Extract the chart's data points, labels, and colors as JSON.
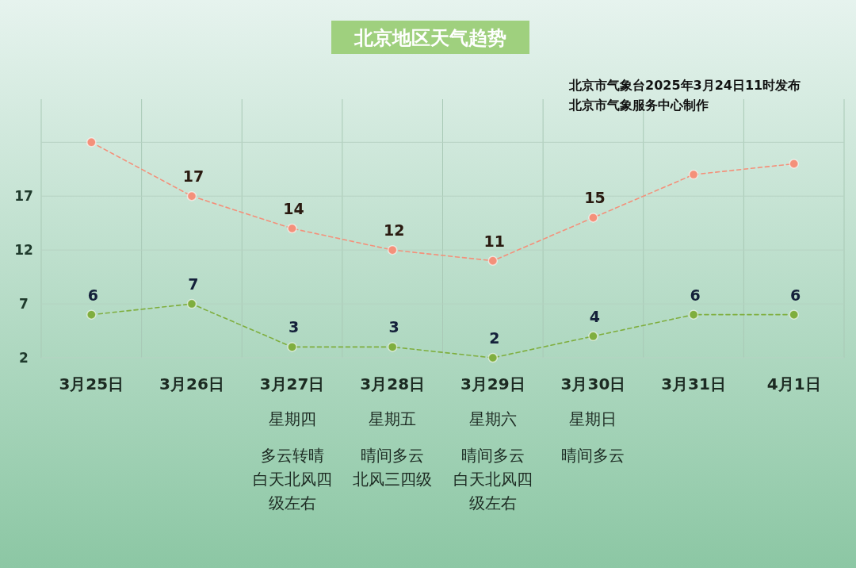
{
  "chart_data": {
    "type": "line",
    "title": "北京地区天气趋势",
    "categories": [
      "3月25日",
      "3月26日",
      "3月27日星期四多云转晴白天北风四级左右",
      "3月28日星期五晴间多云北风三四级",
      "3月29日星期六晴间多云白天北风四级左右",
      "3月30日星期日晴间多云",
      "3月31日",
      "4月1日"
    ],
    "series": [
      {
        "color": "#f4907a",
        "values": [
          22,
          17,
          14,
          12,
          11,
          15,
          19,
          20
        ],
        "value_labels": [
          null,
          "17",
          "14",
          "12",
          "11",
          "15",
          null,
          null
        ]
      },
      {
        "color": "#7fae3e",
        "values": [
          6,
          7,
          3,
          3,
          2,
          4,
          6,
          6
        ],
        "value_labels": [
          "6",
          "7",
          "3",
          "3",
          "2",
          "4",
          "6",
          "6"
        ]
      }
    ],
    "ylim": [
      2,
      26
    ],
    "yticks": [
      2,
      7,
      12,
      17,
      {
        "value": 22,
        "label": null
      }
    ],
    "grid": true,
    "marker": "circle",
    "line_style": "dashed",
    "annotations": [
      "北京市气象台2025年3月24日11时发布",
      "北京市气象服务中心制作"
    ]
  }
}
